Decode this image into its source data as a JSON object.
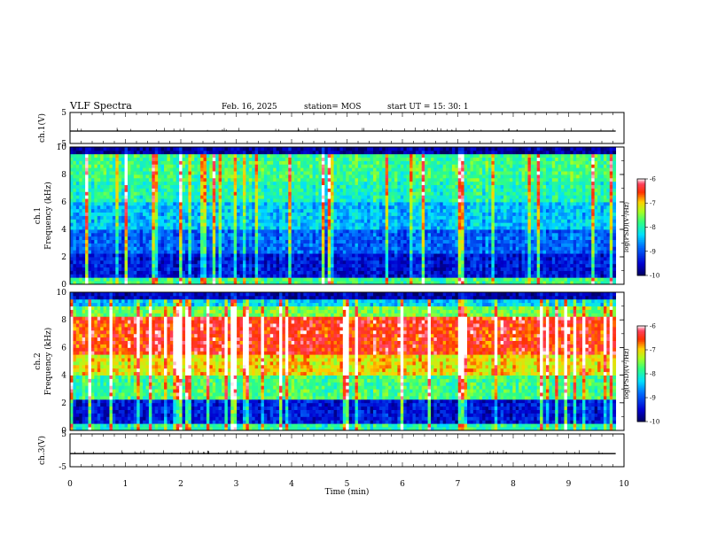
{
  "header": {
    "title": "VLF Spectra",
    "date": "Feb. 16, 2025",
    "station": "station= MOS",
    "start": "start  UT =   15: 30: 1"
  },
  "chart_data": [
    {
      "type": "line",
      "panel": "ch1 voltage",
      "ylabel": "ch.1(V)",
      "ylim": [
        -5,
        5
      ],
      "yticks": [
        "5",
        "-5"
      ],
      "xlim": [
        0,
        10
      ],
      "baseline": -1
    },
    {
      "type": "heatmap",
      "panel": "ch1 spectrogram",
      "ylabel_top": "ch.1",
      "ylabel": "Frequency (kHz)",
      "ylim": [
        0,
        10
      ],
      "yticks": [
        "0",
        "2",
        "4",
        "6",
        "8",
        "10"
      ],
      "xlim": [
        0,
        10
      ],
      "data_end_min": 9.85,
      "colorbar": {
        "label": "log(PSD)(V²/Hz)",
        "ticks": [
          "-6",
          "-7",
          "-8",
          "-9",
          "-10"
        ],
        "range": [
          -10,
          -6
        ]
      }
    },
    {
      "type": "heatmap",
      "panel": "ch2 spectrogram",
      "ylabel_top": "ch.2",
      "ylabel": "Frequency (kHz)",
      "ylim": [
        0,
        10
      ],
      "yticks": [
        "0",
        "2",
        "4",
        "6",
        "8",
        "10"
      ],
      "xlim": [
        0,
        10
      ],
      "data_end_min": 9.85,
      "colorbar": {
        "label": "log(PSD)(V²/Hz)",
        "ticks": [
          "-6",
          "-7",
          "-8",
          "-9",
          "-10"
        ],
        "range": [
          -10,
          -6
        ]
      }
    },
    {
      "type": "line",
      "panel": "ch3 voltage",
      "ylabel": "ch.3(V)",
      "ylim": [
        -5,
        5
      ],
      "yticks": [
        "5",
        "-5"
      ],
      "xlim": [
        0,
        10
      ],
      "baseline": -1,
      "xlabel": "Time  (min)",
      "xticks": [
        "0",
        "1",
        "2",
        "3",
        "4",
        "5",
        "6",
        "7",
        "8",
        "9",
        "10"
      ]
    }
  ]
}
